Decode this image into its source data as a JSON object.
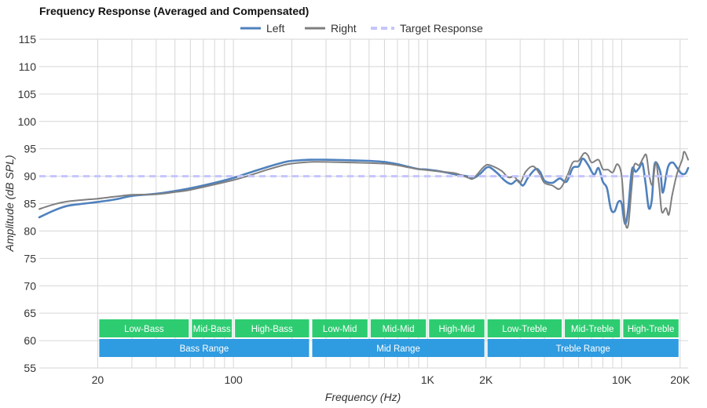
{
  "chart_data": {
    "type": "line",
    "title": "Frequency Response (Averaged and Compensated)",
    "xlabel": "Frequency (Hz)",
    "ylabel": "Amplitude (dB SPL)",
    "x_scale": "log",
    "xlim": [
      10,
      22000
    ],
    "ylim": [
      55,
      115
    ],
    "y_ticks": [
      55,
      60,
      65,
      70,
      75,
      80,
      85,
      90,
      95,
      100,
      105,
      110,
      115
    ],
    "y_tick_labels": [
      "55",
      "60",
      "65",
      "70",
      "75",
      "80",
      "85",
      "90",
      "95",
      "100",
      "105",
      "110",
      "115"
    ],
    "x_ticks": [
      20,
      100,
      1000,
      2000,
      10000,
      20000
    ],
    "x_tick_labels": [
      "20",
      "100",
      "1K",
      "2K",
      "10K",
      "20K"
    ],
    "x_gridlines": [
      20,
      30,
      40,
      50,
      60,
      70,
      80,
      90,
      100,
      200,
      300,
      400,
      500,
      600,
      700,
      800,
      900,
      1000,
      2000,
      3000,
      4000,
      5000,
      6000,
      7000,
      8000,
      9000,
      10000,
      20000
    ],
    "grid": true,
    "legend_position": "top-center",
    "legend": [
      "Left",
      "Right",
      "Target Response"
    ],
    "series": [
      {
        "name": "Left",
        "color": "#4f81bd",
        "points": [
          [
            10,
            82.5
          ],
          [
            12,
            83.8
          ],
          [
            14,
            84.6
          ],
          [
            17,
            85.0
          ],
          [
            20,
            85.3
          ],
          [
            25,
            85.8
          ],
          [
            30,
            86.4
          ],
          [
            40,
            86.8
          ],
          [
            50,
            87.3
          ],
          [
            60,
            87.8
          ],
          [
            80,
            88.8
          ],
          [
            100,
            89.7
          ],
          [
            120,
            90.6
          ],
          [
            150,
            91.7
          ],
          [
            180,
            92.5
          ],
          [
            200,
            92.8
          ],
          [
            250,
            93.0
          ],
          [
            300,
            93.0
          ],
          [
            400,
            92.9
          ],
          [
            500,
            92.8
          ],
          [
            600,
            92.6
          ],
          [
            700,
            92.2
          ],
          [
            800,
            91.7
          ],
          [
            900,
            91.3
          ],
          [
            1000,
            91.2
          ],
          [
            1200,
            90.8
          ],
          [
            1400,
            90.3
          ],
          [
            1600,
            90.0
          ],
          [
            1700,
            89.6
          ],
          [
            1800,
            90.0
          ],
          [
            1900,
            90.7
          ],
          [
            2000,
            91.5
          ],
          [
            2100,
            91.6
          ],
          [
            2300,
            90.5
          ],
          [
            2500,
            89.2
          ],
          [
            2700,
            88.6
          ],
          [
            2900,
            89.3
          ],
          [
            3100,
            88.3
          ],
          [
            3300,
            89.8
          ],
          [
            3600,
            91.3
          ],
          [
            3800,
            90.8
          ],
          [
            4000,
            89.2
          ],
          [
            4400,
            88.8
          ],
          [
            4800,
            89.6
          ],
          [
            5200,
            89.0
          ],
          [
            5600,
            91.5
          ],
          [
            6000,
            91.8
          ],
          [
            6300,
            93.2
          ],
          [
            6700,
            92.1
          ],
          [
            7200,
            90.3
          ],
          [
            7600,
            91.5
          ],
          [
            8000,
            89.0
          ],
          [
            8400,
            87.8
          ],
          [
            8800,
            84.0
          ],
          [
            9200,
            83.6
          ],
          [
            9600,
            85.3
          ],
          [
            10000,
            85.0
          ],
          [
            10400,
            81.3
          ],
          [
            10800,
            84.0
          ],
          [
            11300,
            91.2
          ],
          [
            11800,
            90.8
          ],
          [
            12300,
            91.5
          ],
          [
            12800,
            92.3
          ],
          [
            13300,
            88.5
          ],
          [
            13800,
            84.2
          ],
          [
            14300,
            85.7
          ],
          [
            14800,
            92.3
          ],
          [
            15800,
            90.8
          ],
          [
            16300,
            87.0
          ],
          [
            17300,
            91.6
          ],
          [
            18300,
            92.5
          ],
          [
            19300,
            91.5
          ],
          [
            20300,
            90.5
          ],
          [
            21300,
            90.5
          ],
          [
            22000,
            91.5
          ]
        ]
      },
      {
        "name": "Right",
        "color": "#7f7f7f",
        "points": [
          [
            10,
            84.0
          ],
          [
            12,
            84.9
          ],
          [
            14,
            85.4
          ],
          [
            17,
            85.7
          ],
          [
            20,
            85.9
          ],
          [
            25,
            86.3
          ],
          [
            30,
            86.6
          ],
          [
            40,
            86.7
          ],
          [
            50,
            87.1
          ],
          [
            60,
            87.5
          ],
          [
            80,
            88.5
          ],
          [
            100,
            89.3
          ],
          [
            120,
            90.1
          ],
          [
            150,
            91.2
          ],
          [
            180,
            92.0
          ],
          [
            200,
            92.3
          ],
          [
            250,
            92.6
          ],
          [
            300,
            92.6
          ],
          [
            400,
            92.5
          ],
          [
            500,
            92.4
          ],
          [
            600,
            92.3
          ],
          [
            700,
            92.0
          ],
          [
            800,
            91.6
          ],
          [
            900,
            91.3
          ],
          [
            1000,
            91.1
          ],
          [
            1200,
            90.8
          ],
          [
            1400,
            90.5
          ],
          [
            1600,
            89.8
          ],
          [
            1700,
            89.5
          ],
          [
            1800,
            90.3
          ],
          [
            1900,
            91.3
          ],
          [
            2000,
            92.0
          ],
          [
            2100,
            92.0
          ],
          [
            2400,
            91.0
          ],
          [
            2600,
            89.8
          ],
          [
            2800,
            89.9
          ],
          [
            3000,
            88.8
          ],
          [
            3200,
            90.8
          ],
          [
            3500,
            91.8
          ],
          [
            3800,
            90.3
          ],
          [
            4000,
            88.8
          ],
          [
            4400,
            88.3
          ],
          [
            4800,
            87.7
          ],
          [
            5200,
            89.8
          ],
          [
            5600,
            92.5
          ],
          [
            6000,
            92.8
          ],
          [
            6400,
            94.2
          ],
          [
            6700,
            93.8
          ],
          [
            7000,
            92.5
          ],
          [
            7600,
            93.0
          ],
          [
            8000,
            91.3
          ],
          [
            8500,
            91.2
          ],
          [
            9000,
            90.7
          ],
          [
            9500,
            92.2
          ],
          [
            10000,
            90.0
          ],
          [
            10400,
            82.0
          ],
          [
            10800,
            81.0
          ],
          [
            11200,
            87.0
          ],
          [
            11600,
            92.0
          ],
          [
            12300,
            92.0
          ],
          [
            12900,
            93.3
          ],
          [
            13400,
            93.8
          ],
          [
            13900,
            90.0
          ],
          [
            14400,
            88.5
          ],
          [
            15000,
            92.5
          ],
          [
            15600,
            88.2
          ],
          [
            16100,
            83.5
          ],
          [
            16900,
            84.2
          ],
          [
            17500,
            83.0
          ],
          [
            18200,
            86.5
          ],
          [
            19300,
            90.5
          ],
          [
            20500,
            93.0
          ],
          [
            21000,
            94.5
          ],
          [
            22000,
            93.0
          ]
        ]
      },
      {
        "name": "Target Response",
        "color": "#c5c5ff",
        "dashed": true,
        "points": [
          [
            10,
            90
          ],
          [
            22000,
            90
          ]
        ]
      }
    ],
    "bands": [
      {
        "label": "Low-Bass",
        "from": 20,
        "to": 60,
        "color": "#2ecc71",
        "row": 1
      },
      {
        "label": "Mid-Bass",
        "from": 60,
        "to": 100,
        "color": "#2ecc71",
        "row": 1
      },
      {
        "label": "High-Bass",
        "from": 100,
        "to": 250,
        "color": "#2ecc71",
        "row": 1
      },
      {
        "label": "Low-Mid",
        "from": 250,
        "to": 500,
        "color": "#2ecc71",
        "row": 1
      },
      {
        "label": "Mid-Mid",
        "from": 500,
        "to": 1000,
        "color": "#2ecc71",
        "row": 1
      },
      {
        "label": "High-Mid",
        "from": 1000,
        "to": 2000,
        "color": "#2ecc71",
        "row": 1
      },
      {
        "label": "Low-Treble",
        "from": 2000,
        "to": 5000,
        "color": "#2ecc71",
        "row": 1
      },
      {
        "label": "Mid-Treble",
        "from": 5000,
        "to": 10000,
        "color": "#2ecc71",
        "row": 1
      },
      {
        "label": "High-Treble",
        "from": 10000,
        "to": 20000,
        "color": "#2ecc71",
        "row": 1
      },
      {
        "label": "Bass Range",
        "from": 20,
        "to": 250,
        "color": "#2f9be0",
        "row": 2
      },
      {
        "label": "Mid Range",
        "from": 250,
        "to": 2000,
        "color": "#2f9be0",
        "row": 2
      },
      {
        "label": "Treble Range",
        "from": 2000,
        "to": 20000,
        "color": "#2f9be0",
        "row": 2
      }
    ]
  }
}
